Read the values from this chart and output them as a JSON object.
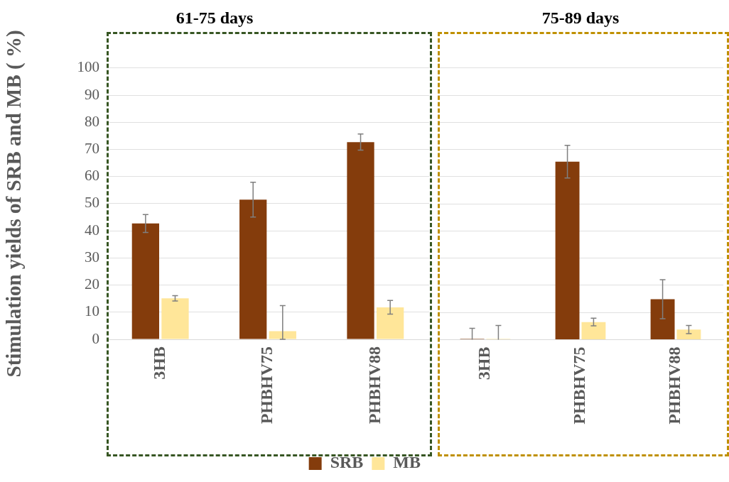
{
  "chart_data": [
    {
      "type": "bar",
      "title": "61-75 days",
      "ylabel": "Stimulation yields of SRB and MB ( %)",
      "categories": [
        "3HB",
        "PHBHV75",
        "PHBHV88"
      ],
      "series": [
        {
          "name": "SRB",
          "color": "#843c0c",
          "values": [
            42.7,
            51.5,
            72.7
          ],
          "errors": [
            3.3,
            6.4,
            3
          ]
        },
        {
          "name": "MB",
          "color": "#ffe699",
          "values": [
            15.1,
            3,
            11.8
          ],
          "errors": [
            1,
            [
              0,
              12.4
            ],
            2.5
          ]
        }
      ],
      "ylim": [
        0,
        100
      ],
      "yticks": [
        0,
        10,
        20,
        30,
        40,
        50,
        60,
        70,
        80,
        90,
        100
      ],
      "grid": "y",
      "legend": "bottom"
    },
    {
      "type": "bar",
      "title": "75-89 days",
      "categories": [
        "3HB",
        "PHBHV75",
        "PHBHV88"
      ],
      "series": [
        {
          "color": "#843c0c",
          "values": [
            0,
            65.5,
            14.9
          ],
          "errors": [
            [
              0,
              4.2
            ],
            6,
            7.2
          ]
        },
        {
          "color": "#ffe699",
          "values": [
            0,
            6.5,
            3.7
          ],
          "errors": [
            [
              0,
              5.2
            ],
            1.4,
            1.5
          ]
        }
      ],
      "ylim": [
        0,
        100
      ],
      "yticks": [
        0,
        10,
        20,
        30,
        40,
        50,
        60,
        70,
        80,
        90,
        100
      ],
      "grid": "y",
      "tick_labels": "x"
    }
  ]
}
